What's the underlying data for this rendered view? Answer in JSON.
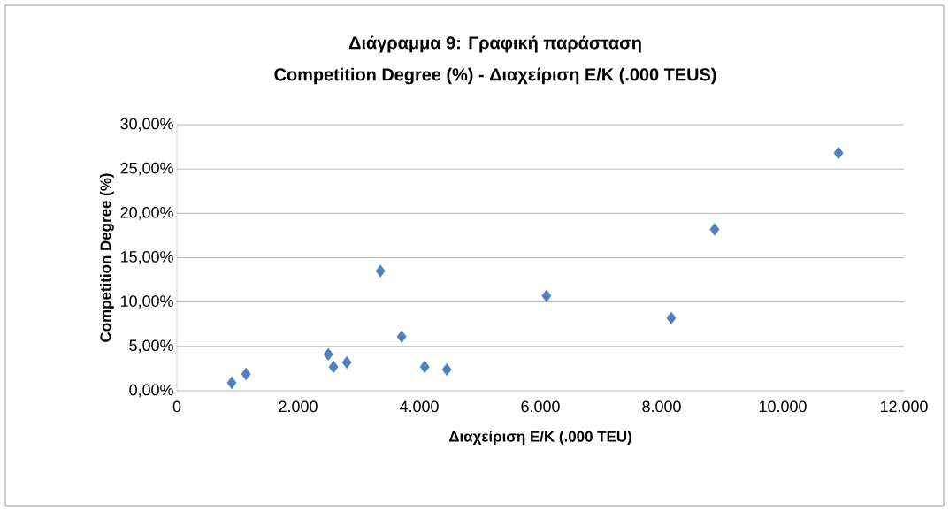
{
  "chart_data": {
    "type": "scatter",
    "title": "Διάγραμμα 9: Γραφική παράσταση",
    "subtitle": "Competition Degree (%) - Διαχείριση Ε/Κ (.000 TEUS)",
    "xlabel": "Διαχείριση Ε/Κ (.000 TEU)",
    "ylabel": "Competition Degree (%)",
    "x": [
      905,
      1140,
      2500,
      2585,
      2805,
      3360,
      3710,
      4090,
      4455,
      6100,
      8160,
      8875,
      10920
    ],
    "series": [
      {
        "color": "#4f81bd",
        "values": [
          0.9,
          1.9,
          4.1,
          2.7,
          3.2,
          13.5,
          6.1,
          2.7,
          2.4,
          10.7,
          8.2,
          18.2,
          26.8
        ]
      }
    ],
    "marker": "diamond",
    "grid": "y",
    "xlim": [
      0,
      12000
    ],
    "ylim": [
      0,
      30
    ],
    "xticks": [
      0,
      {
        "value": 2000,
        "label": "2.000"
      },
      {
        "value": 4000,
        "label": "4.000"
      },
      {
        "value": 6000,
        "label": "6.000"
      },
      {
        "value": 8000,
        "label": "8.000"
      },
      {
        "value": 10000,
        "label": "10.000"
      },
      {
        "value": 12000,
        "label": "12.000"
      }
    ],
    "yticks": [
      {
        "value": 0,
        "label": "0,00%"
      },
      {
        "value": 5,
        "label": "5,00%"
      },
      {
        "value": 10,
        "label": "10,00%"
      },
      {
        "value": 15,
        "label": "15,00%"
      },
      {
        "value": 20,
        "label": "20,00%"
      },
      {
        "value": 25,
        "label": "25,00%"
      },
      {
        "value": 30,
        "label": "30,00%"
      }
    ]
  }
}
